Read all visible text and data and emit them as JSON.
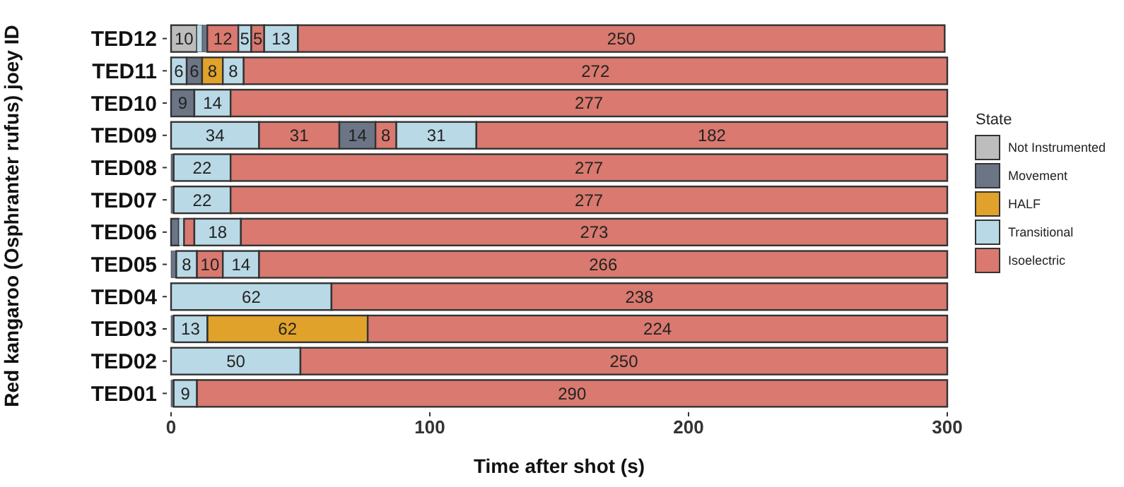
{
  "chart_data": {
    "type": "bar",
    "orientation": "horizontal",
    "xlabel": "Time after shot (s)",
    "ylabel": "Red kangaroo (Osphranter rufus) joey ID",
    "legend_title": "State",
    "legend": "right",
    "grid": false,
    "categories": [
      "TED12",
      "TED11",
      "TED10",
      "TED09",
      "TED08",
      "TED07",
      "TED06",
      "TED05",
      "TED04",
      "TED03",
      "TED02",
      "TED01"
    ],
    "xlim": [
      0,
      300
    ],
    "xticks": [
      0,
      100,
      200,
      300
    ],
    "series": [
      {
        "name": "Not Instrumented",
        "color": "#bdbdbd",
        "values": [
          10,
          null,
          null,
          null,
          null,
          null,
          null,
          null,
          null,
          null,
          null,
          null
        ],
        "base": [
          0,
          null,
          null,
          null,
          null,
          null,
          null,
          null,
          null,
          null,
          null,
          null
        ],
        "value_labels": [
          "10",
          null,
          null,
          null,
          null,
          null,
          null,
          null,
          null,
          null,
          null,
          null
        ]
      },
      {
        "name": "Movement",
        "color": "#6b7585",
        "values": [
          2,
          6,
          9,
          14,
          1,
          1,
          3,
          2,
          null,
          1,
          null,
          1
        ],
        "base": [
          12,
          6,
          0,
          65,
          0,
          0,
          0,
          0,
          null,
          0,
          null,
          0
        ],
        "value_labels": [
          null,
          "6",
          "9",
          "14",
          null,
          null,
          null,
          null,
          null,
          null,
          null,
          null
        ]
      },
      {
        "name": "HALF",
        "color": "#e0a22a",
        "values": [
          null,
          8,
          null,
          null,
          null,
          null,
          null,
          null,
          null,
          62,
          null,
          null
        ],
        "base": [
          null,
          12,
          null,
          null,
          null,
          null,
          null,
          null,
          null,
          14,
          null,
          null
        ],
        "value_labels": [
          null,
          "8",
          null,
          null,
          null,
          null,
          null,
          null,
          null,
          "62",
          null,
          null
        ]
      },
      {
        "name": "Transitional",
        "color": "#b9d9e6",
        "values": [
          2,
          6,
          14,
          34,
          22,
          22,
          2,
          8,
          62,
          13,
          50,
          9
        ],
        "base": [
          10,
          0,
          9,
          0,
          1,
          1,
          3,
          2,
          0,
          1,
          0,
          1
        ],
        "value_labels": [
          null,
          "6",
          "14",
          "34",
          "22",
          "22",
          null,
          "8",
          "62",
          "13",
          "50",
          "9"
        ]
      },
      {
        "name": "Isoelectric",
        "color": "#d9796f",
        "values": [
          12,
          272,
          277,
          31,
          277,
          277,
          4,
          10,
          238,
          224,
          250,
          290
        ],
        "base": [
          14,
          28,
          23,
          34,
          23,
          23,
          5,
          10,
          62,
          76,
          50,
          10
        ],
        "value_labels": [
          "12",
          "272",
          "277",
          "31",
          "277",
          "277",
          null,
          "10",
          "238",
          "224",
          "250",
          "290"
        ]
      },
      {
        "color": "#b9d9e6",
        "values": [
          5,
          8,
          null,
          31,
          null,
          null,
          18,
          14,
          null,
          null,
          null,
          null
        ],
        "base": [
          26,
          20,
          null,
          87,
          null,
          null,
          9,
          20,
          null,
          null,
          null,
          null
        ],
        "value_labels": [
          "5",
          "8",
          null,
          "31",
          null,
          null,
          "18",
          "14",
          null,
          null,
          null,
          null
        ]
      },
      {
        "color": "#d9796f",
        "values": [
          5,
          null,
          null,
          8,
          null,
          null,
          273,
          266,
          null,
          null,
          null,
          null
        ],
        "base": [
          31,
          null,
          null,
          79,
          null,
          null,
          27,
          34,
          null,
          null,
          null,
          null
        ],
        "value_labels": [
          "5",
          null,
          null,
          "8",
          null,
          null,
          "273",
          "266",
          null,
          null,
          null,
          null
        ]
      },
      {
        "color": "#b9d9e6",
        "values": [
          13,
          null,
          null,
          null,
          null,
          null,
          null,
          null,
          null,
          null,
          null,
          null
        ],
        "base": [
          36,
          null,
          null,
          null,
          null,
          null,
          null,
          null,
          null,
          null,
          null,
          null
        ],
        "value_labels": [
          "13",
          null,
          null,
          null,
          null,
          null,
          null,
          null,
          null,
          null,
          null,
          null
        ]
      },
      {
        "color": "#d9796f",
        "values": [
          250,
          null,
          null,
          182,
          null,
          null,
          null,
          null,
          null,
          null,
          null,
          null
        ],
        "base": [
          49,
          null,
          null,
          118,
          null,
          null,
          null,
          null,
          null,
          null,
          null,
          null
        ],
        "value_labels": [
          "250",
          null,
          null,
          "182",
          null,
          null,
          null,
          null,
          null,
          null,
          null,
          null
        ]
      }
    ]
  }
}
